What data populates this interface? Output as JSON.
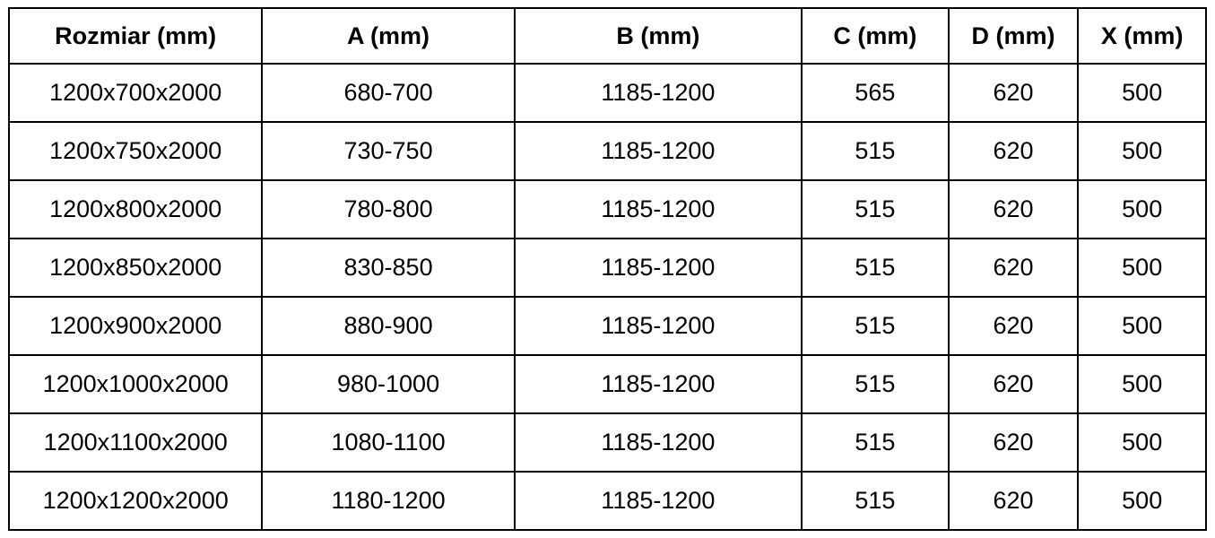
{
  "chart_data": {
    "type": "table",
    "columns": [
      "Rozmiar (mm)",
      "A (mm)",
      "B (mm)",
      "C (mm)",
      "D (mm)",
      "X (mm)"
    ],
    "rows": [
      [
        "1200x700x2000",
        "680-700",
        "1185-1200",
        "565",
        "620",
        "500"
      ],
      [
        "1200x750x2000",
        "730-750",
        "1185-1200",
        "515",
        "620",
        "500"
      ],
      [
        "1200x800x2000",
        "780-800",
        "1185-1200",
        "515",
        "620",
        "500"
      ],
      [
        "1200x850x2000",
        "830-850",
        "1185-1200",
        "515",
        "620",
        "500"
      ],
      [
        "1200x900x2000",
        "880-900",
        "1185-1200",
        "515",
        "620",
        "500"
      ],
      [
        "1200x1000x2000",
        "980-1000",
        "1185-1200",
        "515",
        "620",
        "500"
      ],
      [
        "1200x1100x2000",
        "1080-1100",
        "1185-1200",
        "515",
        "620",
        "500"
      ],
      [
        "1200x1200x2000",
        "1180-1200",
        "1185-1200",
        "515",
        "620",
        "500"
      ]
    ],
    "layout": {
      "grid": true,
      "border_color": "#000000",
      "background_color": "#ffffff",
      "text_color": "#000000",
      "header_bold": true
    }
  }
}
